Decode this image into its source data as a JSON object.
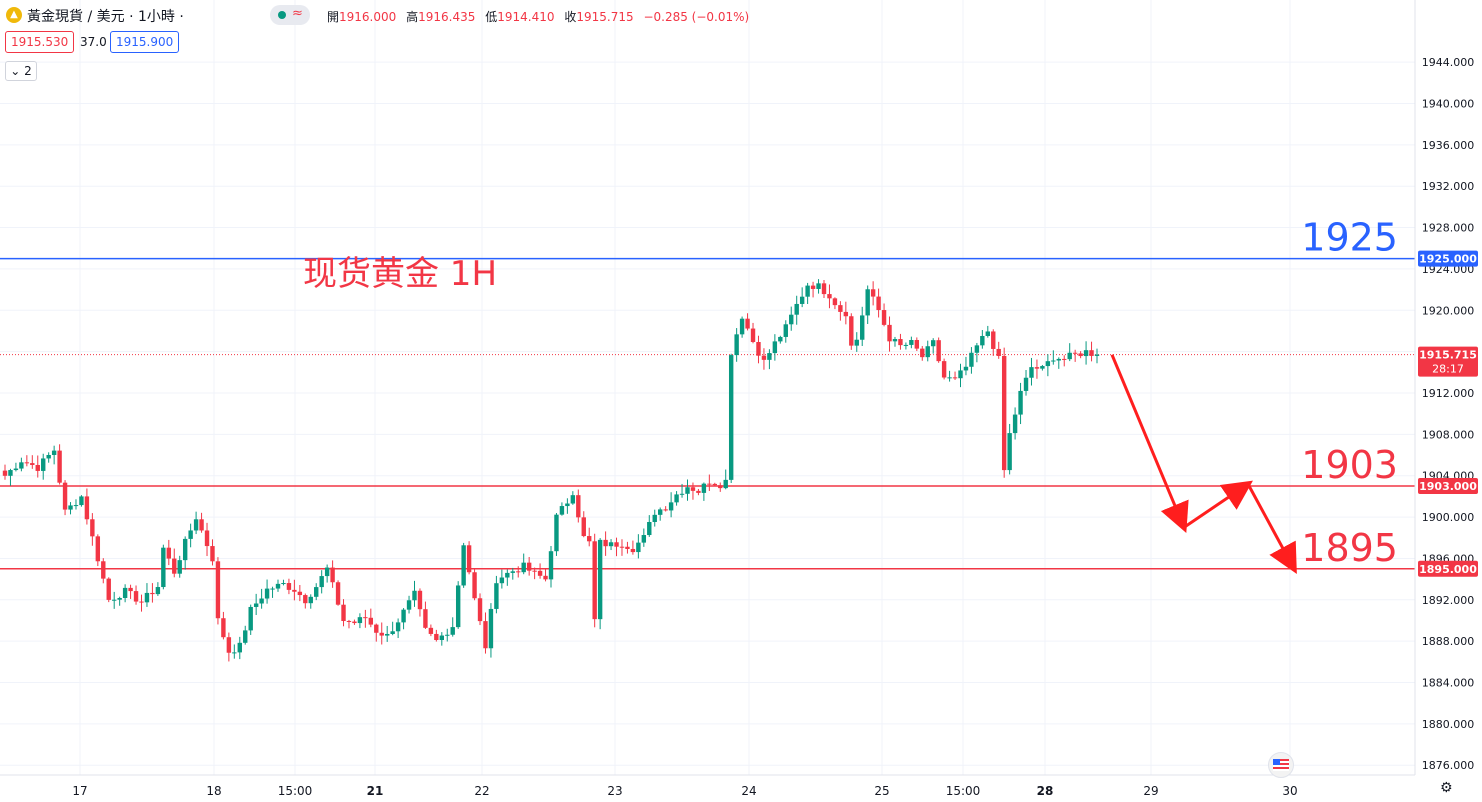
{
  "header": {
    "symbol_title": "黃金現貨 / 美元 · 1小時 ·",
    "ohlc": [
      {
        "label": "開",
        "value": "1916.000"
      },
      {
        "label": "高",
        "value": "1916.435"
      },
      {
        "label": "低",
        "value": "1914.410"
      },
      {
        "label": "收",
        "value": "1915.715"
      }
    ],
    "change": "−0.285 (−0.01%)",
    "bid": "1915.530",
    "spread": "37.0",
    "ask": "1915.900",
    "indicator_count": "2",
    "status_wave": "≈"
  },
  "colors": {
    "up": "#089981",
    "down": "#f23645",
    "resistance": "#2962ff",
    "support": "#f23645",
    "grid": "#f0f3fa",
    "axis_text": "#131722"
  },
  "chart_data": {
    "type": "candlestick",
    "title": "现货黄金 1H",
    "ylim": [
      1872,
      1948
    ],
    "y_ticks": [
      "1876.000",
      "1880.000",
      "1884.000",
      "1888.000",
      "1892.000",
      "1896.000",
      "1900.000",
      "1904.000",
      "1908.000",
      "1912.000",
      "1916.000",
      "1920.000",
      "1924.000",
      "1928.000",
      "1932.000",
      "1936.000",
      "1940.000",
      "1944.000"
    ],
    "x_ticks": [
      {
        "label": "17",
        "bold": false
      },
      {
        "label": "18",
        "bold": false
      },
      {
        "label": "15:00",
        "bold": false
      },
      {
        "label": "21",
        "bold": true
      },
      {
        "label": "22",
        "bold": false
      },
      {
        "label": "23",
        "bold": false
      },
      {
        "label": "24",
        "bold": false
      },
      {
        "label": "25",
        "bold": false
      },
      {
        "label": "15:00",
        "bold": false
      },
      {
        "label": "28",
        "bold": true
      },
      {
        "label": "29",
        "bold": false
      },
      {
        "label": "30",
        "bold": false
      }
    ],
    "levels": [
      {
        "label": "1925",
        "value": 1925.0,
        "axis_label": "1925.000",
        "color": "#2962ff"
      },
      {
        "label": "1903",
        "value": 1903.0,
        "axis_label": "1903.000",
        "color": "#f23645"
      },
      {
        "label": "1895",
        "value": 1895.0,
        "axis_label": "1895.000",
        "color": "#f23645"
      }
    ],
    "last_price": {
      "value": 1915.715,
      "label": "1915.715",
      "countdown": "28:17"
    },
    "projection_path": [
      1915.7,
      1899.0,
      1903.2,
      1895.0
    ],
    "waypoints": [
      [
        0,
        1904
      ],
      [
        3,
        1905.5
      ],
      [
        6,
        1904.8
      ],
      [
        9,
        1906.5
      ],
      [
        11,
        1900.5
      ],
      [
        14,
        1902
      ],
      [
        16,
        1898
      ],
      [
        19,
        1892
      ],
      [
        22,
        1892.8
      ],
      [
        25,
        1891.8
      ],
      [
        28,
        1893.3
      ],
      [
        29,
        1897
      ],
      [
        31,
        1894.7
      ],
      [
        33,
        1897.5
      ],
      [
        35,
        1900
      ],
      [
        38,
        1896
      ],
      [
        39,
        1890
      ],
      [
        41,
        1887
      ],
      [
        43,
        1887.5
      ],
      [
        45,
        1891
      ],
      [
        48,
        1893
      ],
      [
        51,
        1893.5
      ],
      [
        53,
        1893
      ],
      [
        55,
        1892
      ],
      [
        57,
        1893.3
      ],
      [
        59,
        1895
      ],
      [
        62,
        1890
      ],
      [
        64,
        1889.8
      ],
      [
        66,
        1890.3
      ],
      [
        68,
        1889
      ],
      [
        70,
        1888.5
      ],
      [
        72,
        1890
      ],
      [
        75,
        1892.5
      ],
      [
        77,
        1889
      ],
      [
        79,
        1888
      ],
      [
        82,
        1889.5
      ],
      [
        84,
        1897.5
      ],
      [
        86,
        1892
      ],
      [
        88,
        1887.5
      ],
      [
        90,
        1894
      ],
      [
        93,
        1894.8
      ],
      [
        95,
        1895.2
      ],
      [
        97,
        1894.5
      ],
      [
        99,
        1894
      ],
      [
        101,
        1900
      ],
      [
        103,
        1901.5
      ],
      [
        104,
        1902.5
      ],
      [
        106,
        1898
      ],
      [
        107,
        1897.5
      ],
      [
        108,
        1890
      ],
      [
        109,
        1897.5
      ],
      [
        111,
        1897.3
      ],
      [
        113,
        1897.5
      ],
      [
        115,
        1897
      ],
      [
        117,
        1898
      ],
      [
        119,
        1900.5
      ],
      [
        121,
        1901
      ],
      [
        123,
        1902.2
      ],
      [
        125,
        1903
      ],
      [
        127,
        1902.5
      ],
      [
        129,
        1903.5
      ],
      [
        131,
        1903.2
      ],
      [
        132,
        1903.5
      ],
      [
        133,
        1916
      ],
      [
        135,
        1919.5
      ],
      [
        137,
        1917
      ],
      [
        139,
        1915
      ],
      [
        141,
        1916.8
      ],
      [
        143,
        1918.3
      ],
      [
        145,
        1920.5
      ],
      [
        147,
        1922.5
      ],
      [
        149,
        1922.3
      ],
      [
        151,
        1921.5
      ],
      [
        153,
        1920
      ],
      [
        154,
        1919.8
      ],
      [
        155,
        1916.5
      ],
      [
        156,
        1917.2
      ],
      [
        158,
        1922
      ],
      [
        160,
        1920
      ],
      [
        162,
        1917.3
      ],
      [
        164,
        1916.5
      ],
      [
        166,
        1916.8
      ],
      [
        168,
        1915.5
      ],
      [
        170,
        1916.8
      ],
      [
        172,
        1913.5
      ],
      [
        174,
        1913.2
      ],
      [
        176,
        1914.5
      ],
      [
        178,
        1916.5
      ],
      [
        180,
        1918
      ],
      [
        182,
        1915.2
      ],
      [
        183,
        1904.5
      ],
      [
        184,
        1908
      ],
      [
        186,
        1912
      ],
      [
        188,
        1914.5
      ],
      [
        190,
        1914.3
      ],
      [
        192,
        1915.5
      ],
      [
        194,
        1915.3
      ],
      [
        196,
        1915.7
      ],
      [
        198,
        1916
      ],
      [
        200,
        1915.7
      ]
    ]
  }
}
